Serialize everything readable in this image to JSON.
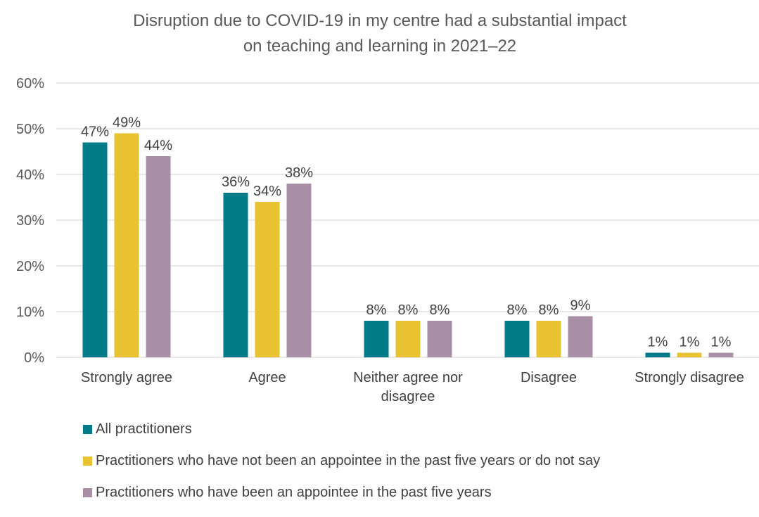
{
  "chart_data": {
    "type": "bar",
    "title": "Disruption due to COVID-19 in my centre had a substantial impact on teaching and learning in 2021–22",
    "title_lines": [
      "Disruption due to COVID-19 in my centre had a substantial impact",
      "on teaching and learning in 2021–22"
    ],
    "categories": [
      "Strongly agree",
      "Agree",
      "Neither agree nor disagree",
      "Disagree",
      "Strongly disagree"
    ],
    "category_lines": [
      [
        "Strongly agree"
      ],
      [
        "Agree"
      ],
      [
        "Neither agree nor",
        "disagree"
      ],
      [
        "Disagree"
      ],
      [
        "Strongly disagree"
      ]
    ],
    "series": [
      {
        "name": "All practitioners",
        "color": "#007A87",
        "values": [
          47,
          36,
          8,
          8,
          1
        ],
        "labels": [
          "47%",
          "36%",
          "8%",
          "8%",
          "1%"
        ]
      },
      {
        "name": "Practitioners who have not been an appointee in the past five years or do not say",
        "color": "#E9C232",
        "values": [
          49,
          34,
          8,
          8,
          1
        ],
        "labels": [
          "49%",
          "34%",
          "8%",
          "8%",
          "1%"
        ]
      },
      {
        "name": "Practitioners who have been an appointee in the past five years",
        "color": "#A88FA5",
        "values": [
          44,
          38,
          8,
          9,
          1
        ],
        "labels": [
          "44%",
          "38%",
          "8%",
          "9%",
          "1%"
        ]
      }
    ],
    "ylim": [
      0,
      60
    ],
    "yticks": [
      0,
      10,
      20,
      30,
      40,
      50,
      60
    ],
    "ytick_labels": [
      "0%",
      "10%",
      "20%",
      "30%",
      "40%",
      "50%",
      "60%"
    ],
    "grid": true,
    "legend_position": "bottom-left",
    "xlabel": "",
    "ylabel": ""
  },
  "legend": {
    "items": [
      "All practitioners",
      "Practitioners who have not been an appointee in the past five years or do not say",
      "Practitioners who have been an appointee in the past five years"
    ]
  }
}
